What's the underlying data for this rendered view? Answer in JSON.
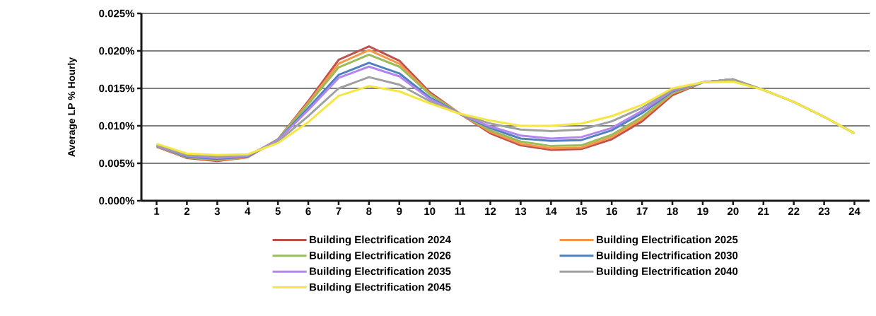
{
  "chart_data": {
    "type": "line",
    "ylabel": "Average LP % Hourly",
    "categories": [
      "1",
      "2",
      "3",
      "4",
      "5",
      "6",
      "7",
      "8",
      "9",
      "10",
      "11",
      "12",
      "13",
      "14",
      "15",
      "16",
      "17",
      "18",
      "19",
      "20",
      "21",
      "22",
      "23",
      "24"
    ],
    "ylim": [
      0,
      0.025
    ],
    "yticks": [
      {
        "value": 0,
        "label": "0.000%"
      },
      {
        "value": 0.005,
        "label": "0.005%"
      },
      {
        "value": 0.01,
        "label": "0.010%"
      },
      {
        "value": 0.015,
        "label": "0.015%"
      },
      {
        "value": 0.02,
        "label": "0.020%"
      },
      {
        "value": 0.025,
        "label": "0.025%"
      }
    ],
    "grid": "y",
    "legend": "bottom",
    "marker": "none",
    "line_style": "solid",
    "series": [
      {
        "name": "Building Electrification 2024",
        "color": "#c0504d",
        "values": [
          0.0072,
          0.0057,
          0.0053,
          0.0058,
          0.0082,
          0.0133,
          0.0188,
          0.0206,
          0.0187,
          0.0145,
          0.0116,
          0.009,
          0.0074,
          0.0068,
          0.0069,
          0.0082,
          0.0106,
          0.0141,
          0.0158,
          0.0162,
          null,
          null,
          null,
          null
        ]
      },
      {
        "name": "Building Electrification 2025",
        "color": "#f79646",
        "values": [
          0.0072,
          0.0058,
          0.0054,
          0.0058,
          0.0082,
          0.0131,
          0.0183,
          0.0201,
          0.0183,
          0.0143,
          0.0116,
          0.0092,
          0.0076,
          0.007,
          0.0071,
          0.0085,
          0.0109,
          0.0143,
          0.0158,
          0.0162,
          null,
          null,
          null,
          null
        ]
      },
      {
        "name": "Building Electrification 2026",
        "color": "#9bbb59",
        "values": [
          0.0073,
          0.0058,
          0.0055,
          0.0059,
          0.0082,
          0.0129,
          0.0178,
          0.0195,
          0.0179,
          0.0142,
          0.0116,
          0.0094,
          0.0079,
          0.0073,
          0.0074,
          0.0088,
          0.0112,
          0.0144,
          0.0158,
          0.0162,
          0.0148,
          0.0132,
          0.0112,
          0.009
        ]
      },
      {
        "name": "Building Electrification 2030",
        "color": "#4f81bd",
        "values": [
          0.0073,
          0.0059,
          0.0056,
          0.0059,
          0.0081,
          0.0124,
          0.0168,
          0.0184,
          0.017,
          0.0138,
          0.0116,
          0.0097,
          0.0083,
          0.008,
          0.0081,
          0.0094,
          0.0117,
          0.0146,
          0.0158,
          0.0162,
          null,
          null,
          null,
          null
        ]
      },
      {
        "name": "Building Electrification 2035",
        "color": "#b285f0",
        "values": [
          0.0073,
          0.006,
          0.0057,
          0.006,
          0.0081,
          0.0121,
          0.0164,
          0.0179,
          0.0166,
          0.0136,
          0.0116,
          0.0099,
          0.0087,
          0.0083,
          0.0085,
          0.0097,
          0.012,
          0.0147,
          0.0158,
          0.0162,
          null,
          null,
          null,
          null
        ]
      },
      {
        "name": "Building Electrification 2040",
        "color": "#a0a0a0",
        "values": [
          0.0074,
          0.0061,
          0.0059,
          0.0061,
          0.0079,
          0.0113,
          0.015,
          0.0165,
          0.0155,
          0.0133,
          0.0116,
          0.0103,
          0.0095,
          0.0093,
          0.0095,
          0.0106,
          0.0124,
          0.0148,
          0.0158,
          0.0162,
          0.0148,
          0.0132,
          0.0112,
          0.009
        ]
      },
      {
        "name": "Building Electrification 2045",
        "color": "#f5e642",
        "values": [
          0.0076,
          0.0063,
          0.0061,
          0.0062,
          0.0077,
          0.0105,
          0.014,
          0.0153,
          0.0146,
          0.013,
          0.0116,
          0.0107,
          0.01,
          0.01,
          0.0103,
          0.0113,
          0.0128,
          0.015,
          0.0158,
          0.0159,
          0.0148,
          0.0132,
          0.0112,
          0.009
        ]
      }
    ]
  }
}
